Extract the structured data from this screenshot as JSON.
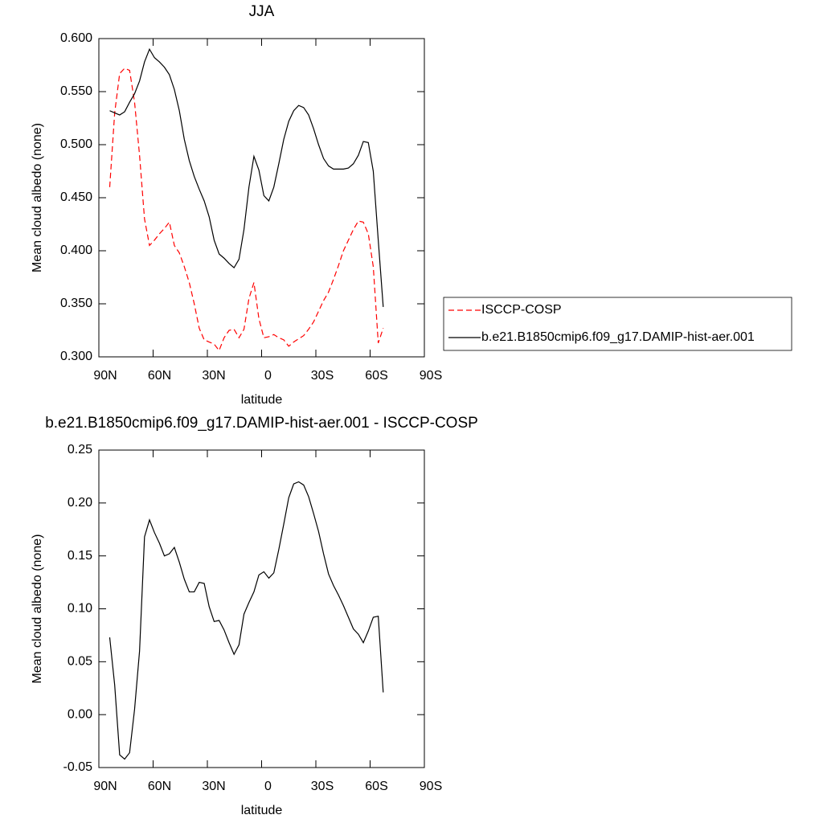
{
  "chart_data": [
    {
      "type": "line",
      "title": "JJA",
      "xlabel": "latitude",
      "ylabel": "Mean cloud albedo (none)",
      "x": [
        84,
        81.25,
        78.5,
        75.75,
        73,
        70.25,
        67.5,
        64.75,
        62,
        59.25,
        56.5,
        53.75,
        51,
        48.25,
        45.5,
        42.75,
        40,
        37.25,
        34.5,
        31.75,
        29,
        26.25,
        23.5,
        20.75,
        18,
        15.25,
        12.5,
        9.75,
        7,
        4.25,
        1.5,
        -1.25,
        -4,
        -6.75,
        -9.5,
        -12.25,
        -15,
        -17.75,
        -20.5,
        -23.25,
        -26,
        -28.75,
        -31.5,
        -34.25,
        -37,
        -39.75,
        -42.5,
        -45.25,
        -48,
        -50.75,
        -53.5,
        -56.25,
        -59,
        -61.75,
        -64.5,
        -67.25
      ],
      "series": [
        {
          "name": "ISCCP-COSP",
          "color": "#ff0000",
          "line_style": "dashed",
          "values": [
            0.46,
            0.53,
            0.567,
            0.572,
            0.57,
            0.54,
            0.49,
            0.43,
            0.405,
            0.41,
            0.416,
            0.421,
            0.427,
            0.405,
            0.398,
            0.385,
            0.37,
            0.35,
            0.327,
            0.316,
            0.314,
            0.312,
            0.306,
            0.318,
            0.325,
            0.326,
            0.318,
            0.326,
            0.355,
            0.37,
            0.336,
            0.318,
            0.319,
            0.321,
            0.318,
            0.316,
            0.31,
            0.314,
            0.317,
            0.32,
            0.326,
            0.333,
            0.343,
            0.353,
            0.361,
            0.373,
            0.386,
            0.4,
            0.41,
            0.42,
            0.428,
            0.427,
            0.416,
            0.385,
            0.313,
            0.327
          ]
        },
        {
          "name": "b.e21.B1850cmip6.f09_g17.DAMIP-hist-aer.001",
          "color": "#000000",
          "line_style": "solid",
          "values": [
            0.532,
            0.53,
            0.528,
            0.531,
            0.54,
            0.548,
            0.56,
            0.578,
            0.59,
            0.582,
            0.578,
            0.573,
            0.566,
            0.552,
            0.532,
            0.505,
            0.485,
            0.47,
            0.458,
            0.447,
            0.432,
            0.41,
            0.397,
            0.393,
            0.388,
            0.384,
            0.392,
            0.42,
            0.46,
            0.489,
            0.476,
            0.452,
            0.447,
            0.46,
            0.482,
            0.505,
            0.522,
            0.532,
            0.537,
            0.535,
            0.528,
            0.515,
            0.5,
            0.487,
            0.48,
            0.477,
            0.477,
            0.477,
            0.478,
            0.482,
            0.49,
            0.503,
            0.502,
            0.475,
            0.41,
            0.347
          ]
        }
      ],
      "xlim": [
        90,
        -90
      ],
      "xticks": [
        {
          "value": 90,
          "label": "90N"
        },
        {
          "value": 60,
          "label": "60N"
        },
        {
          "value": 30,
          "label": "30N"
        },
        0,
        {
          "value": -30,
          "label": "30S"
        },
        {
          "value": -60,
          "label": "60S"
        },
        {
          "value": -90,
          "label": "90S"
        }
      ],
      "ylim": [
        0.3,
        0.6
      ],
      "yticks": [
        {
          "value": 0.3,
          "label": "0.300"
        },
        {
          "value": 0.35,
          "label": "0.350"
        },
        {
          "value": 0.4,
          "label": "0.400"
        },
        {
          "value": 0.45,
          "label": "0.450"
        },
        {
          "value": 0.5,
          "label": "0.500"
        },
        {
          "value": 0.55,
          "label": "0.550"
        },
        {
          "value": 0.6,
          "label": "0.600"
        }
      ],
      "legend": "right"
    },
    {
      "type": "line",
      "title": "b.e21.B1850cmip6.f09_g17.DAMIP-hist-aer.001 - ISCCP-COSP",
      "xlabel": "latitude",
      "ylabel": "Mean cloud albedo (none)",
      "x": [
        84,
        81.25,
        78.5,
        75.75,
        73,
        70.25,
        67.5,
        64.75,
        62,
        59.25,
        56.5,
        53.75,
        51,
        48.25,
        45.5,
        42.75,
        40,
        37.25,
        34.5,
        31.75,
        29,
        26.25,
        23.5,
        20.75,
        18,
        15.25,
        12.5,
        9.75,
        7,
        4.25,
        1.5,
        -1.25,
        -4,
        -6.75,
        -9.5,
        -12.25,
        -15,
        -17.75,
        -20.5,
        -23.25,
        -26,
        -28.75,
        -31.5,
        -34.25,
        -37,
        -39.75,
        -42.5,
        -45.25,
        -48,
        -50.75,
        -53.5,
        -56.25,
        -59,
        -61.75,
        -64.5,
        -67.25
      ],
      "color": "#000000",
      "values": [
        0.073,
        0.028,
        -0.038,
        -0.042,
        -0.036,
        0.005,
        0.06,
        0.168,
        0.184,
        0.172,
        0.162,
        0.15,
        0.152,
        0.158,
        0.144,
        0.128,
        0.116,
        0.116,
        0.125,
        0.124,
        0.102,
        0.088,
        0.089,
        0.08,
        0.068,
        0.057,
        0.066,
        0.095,
        0.106,
        0.116,
        0.132,
        0.135,
        0.129,
        0.134,
        0.156,
        0.18,
        0.205,
        0.218,
        0.22,
        0.217,
        0.206,
        0.19,
        0.173,
        0.152,
        0.133,
        0.122,
        0.113,
        0.103,
        0.092,
        0.081,
        0.076,
        0.068,
        0.079,
        0.092,
        0.093,
        0.021
      ],
      "xlim": [
        90,
        -90
      ],
      "xticks": [
        {
          "value": 90,
          "label": "90N"
        },
        {
          "value": 60,
          "label": "60N"
        },
        {
          "value": 30,
          "label": "30N"
        },
        0,
        {
          "value": -30,
          "label": "30S"
        },
        {
          "value": -60,
          "label": "60S"
        },
        {
          "value": -90,
          "label": "90S"
        }
      ],
      "ylim": [
        -0.05,
        0.25
      ],
      "yticks": [
        -0.05,
        {
          "value": 0,
          "label": "0.00"
        },
        0.05,
        {
          "value": 0.1,
          "label": "0.10"
        },
        0.15,
        {
          "value": 0.2,
          "label": "0.20"
        },
        0.25
      ]
    }
  ]
}
